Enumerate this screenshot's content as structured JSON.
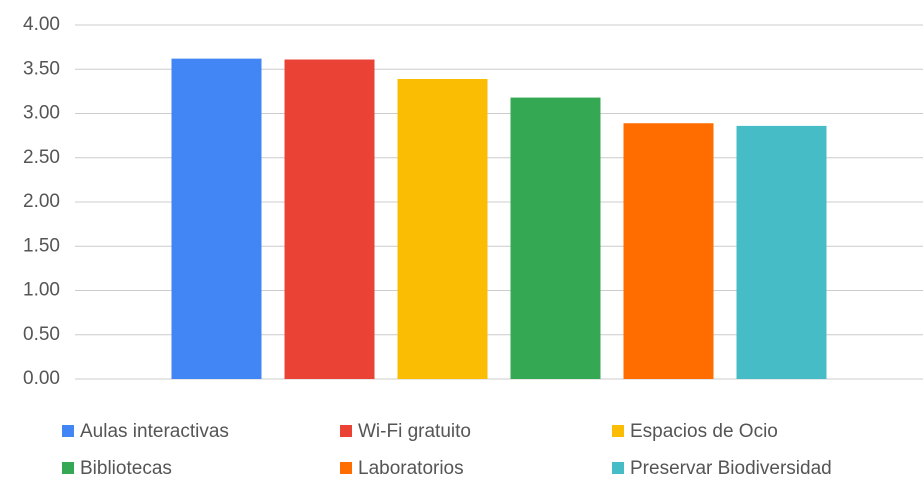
{
  "chart_data": {
    "type": "bar",
    "categories": [
      null
    ],
    "series": [
      {
        "name": "Aulas interactivas",
        "color": "#4285f4",
        "values": [
          3.62
        ]
      },
      {
        "name": "Wi-Fi gratuito",
        "color": "#ea4335",
        "values": [
          3.61
        ]
      },
      {
        "name": "Espacios de Ocio",
        "color": "#fbbc04",
        "values": [
          3.39
        ]
      },
      {
        "name": "Bibliotecas",
        "color": "#34a853",
        "values": [
          3.18
        ]
      },
      {
        "name": "Laboratorios",
        "color": "#ff6d01",
        "values": [
          2.89
        ]
      },
      {
        "name": "Preservar Biodiversidad",
        "color": "#46bdc6",
        "values": [
          2.86
        ]
      }
    ],
    "ylim": [
      0,
      4
    ],
    "yticks": [
      {
        "value": 0,
        "label": "0.00"
      },
      {
        "value": 0.5,
        "label": "0.50"
      },
      {
        "value": 1,
        "label": "1.00"
      },
      {
        "value": 1.5,
        "label": "1.50"
      },
      {
        "value": 2,
        "label": "2.00"
      },
      {
        "value": 2.5,
        "label": "2.50"
      },
      {
        "value": 3,
        "label": "3.00"
      },
      {
        "value": 3.5,
        "label": "3.50"
      },
      {
        "value": 4,
        "label": "4.00"
      }
    ],
    "grid": true,
    "legend": "bottom"
  }
}
